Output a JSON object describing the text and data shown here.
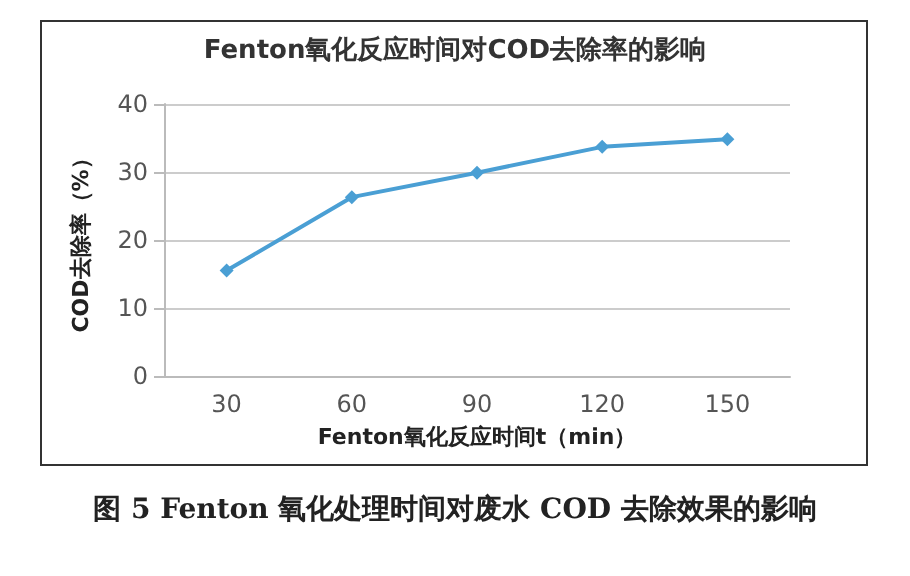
{
  "chart_data": {
    "type": "line",
    "title": "Fenton氧化反应时间对COD去除率的影响",
    "xlabel": "Fenton氧化反应时间t（min）",
    "ylabel": "COD去除率（%）",
    "categories": [
      "30",
      "60",
      "90",
      "120",
      "150"
    ],
    "series": [
      {
        "color": "#4a9fd4",
        "values": [
          15.5,
          26.3,
          29.9,
          33.7,
          34.8
        ]
      }
    ],
    "ylim": [
      0,
      40
    ],
    "yticks": [
      0,
      10,
      20,
      30,
      40
    ],
    "grid": "y",
    "marker": "diamond",
    "line_style": "solid",
    "annotations": [
      "图 5 Fenton 氧化处理时间对废水 COD 去除效果的影响"
    ]
  }
}
